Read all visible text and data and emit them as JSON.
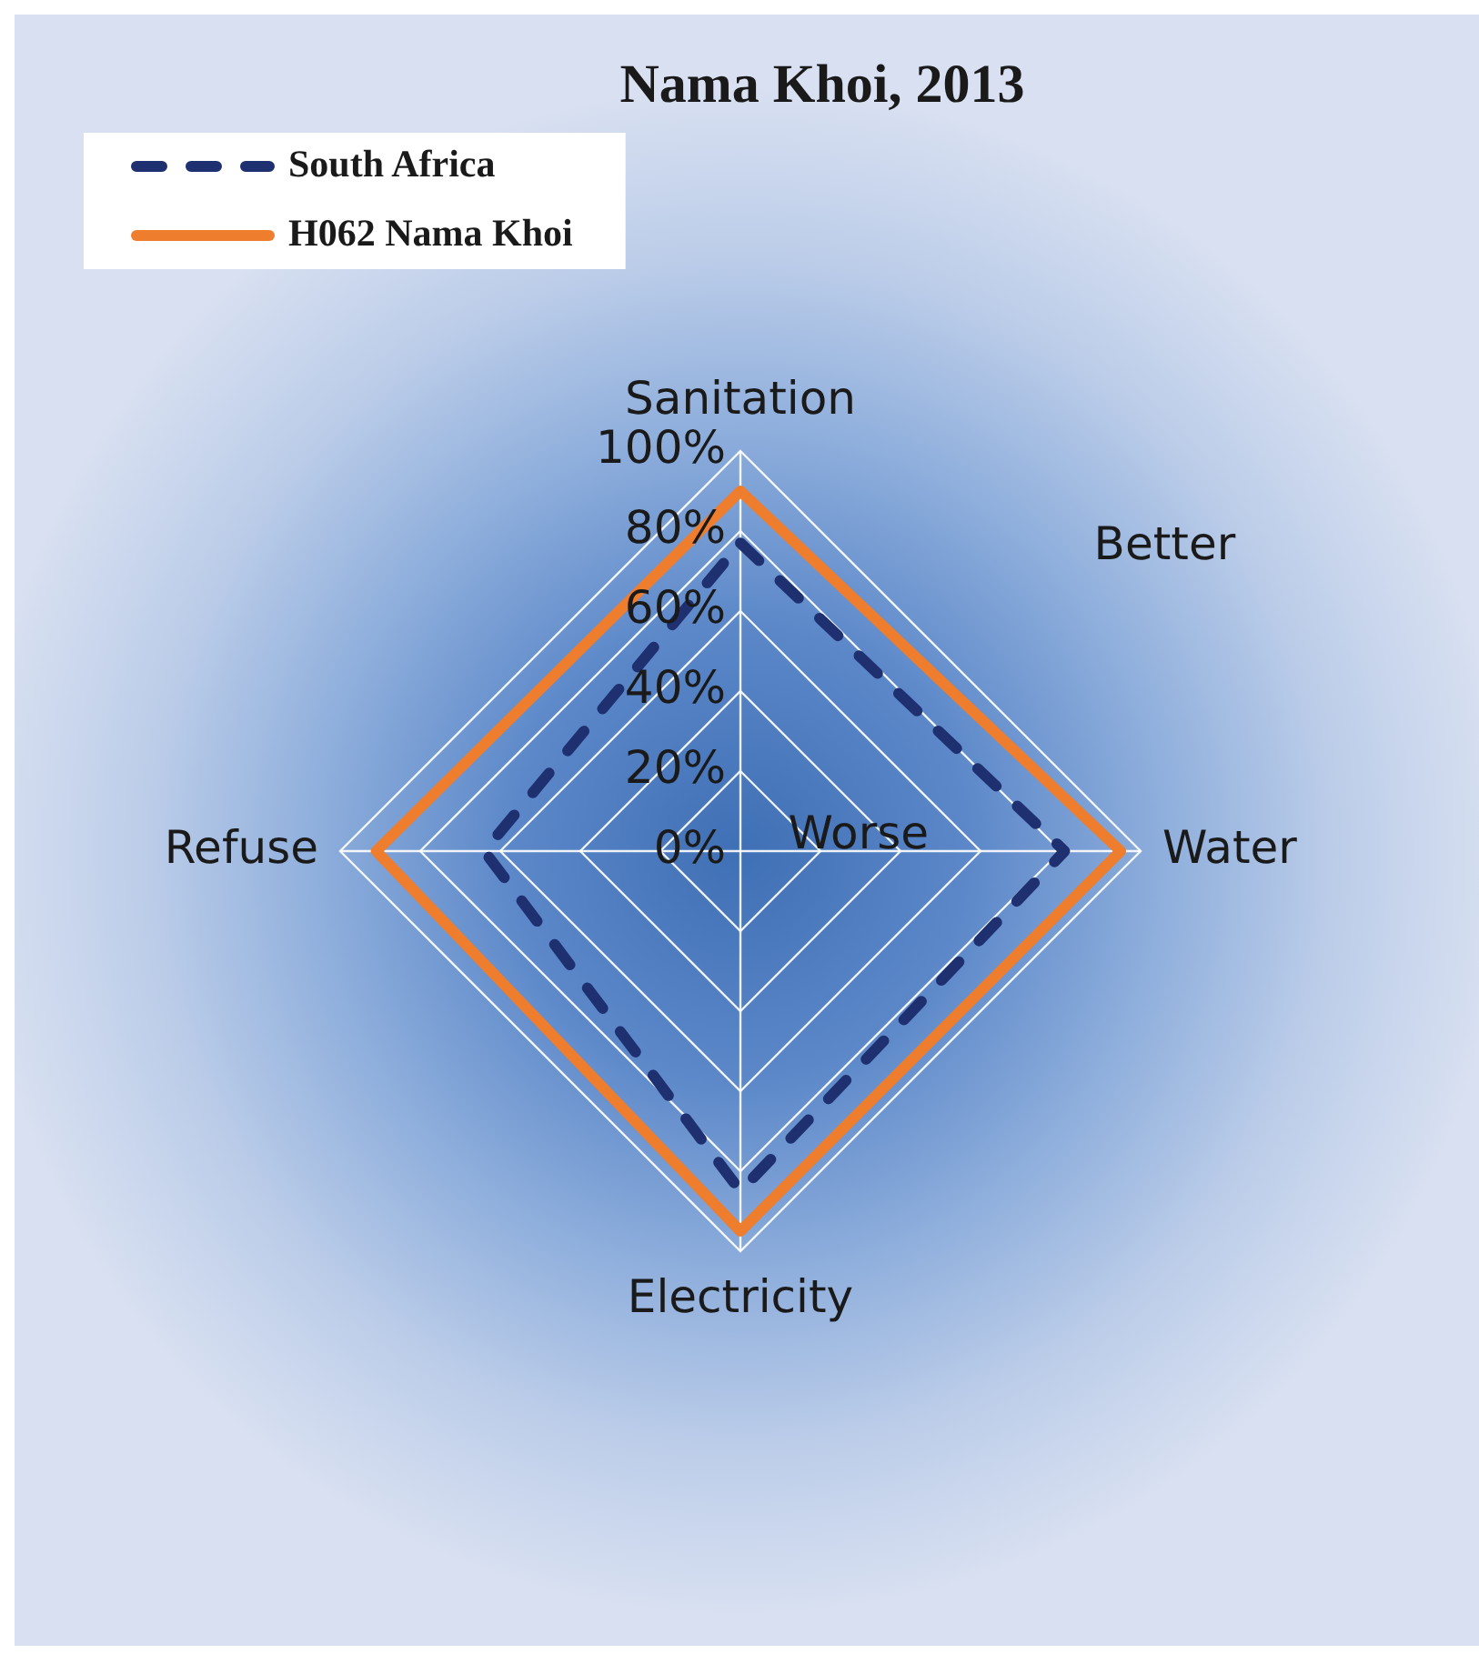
{
  "chart_data": {
    "type": "radar",
    "title": "Nama Khoi, 2013",
    "categories": [
      "Sanitation",
      "Water",
      "Electricity",
      "Refuse"
    ],
    "series": [
      {
        "name": "South Africa",
        "color": "#1f3070",
        "values": [
          77,
          81,
          85,
          64
        ],
        "line_style": "dashed"
      },
      {
        "name": "H062 Nama Khoi",
        "color": "#ee7d2e",
        "values": [
          90,
          95,
          95,
          91
        ],
        "line_style": "solid"
      }
    ],
    "ylim": [
      0,
      100
    ],
    "yticks": [
      {
        "value": 0,
        "label": "0%"
      },
      {
        "value": 20,
        "label": "20%"
      },
      {
        "value": 40,
        "label": "40%"
      },
      {
        "value": 60,
        "label": "60%"
      },
      {
        "value": 80,
        "label": "80%"
      },
      {
        "value": 100,
        "label": "100%"
      }
    ],
    "grid": true,
    "legend": "top left",
    "marker": "none",
    "annotations": [
      "Better",
      "Worse"
    ]
  }
}
